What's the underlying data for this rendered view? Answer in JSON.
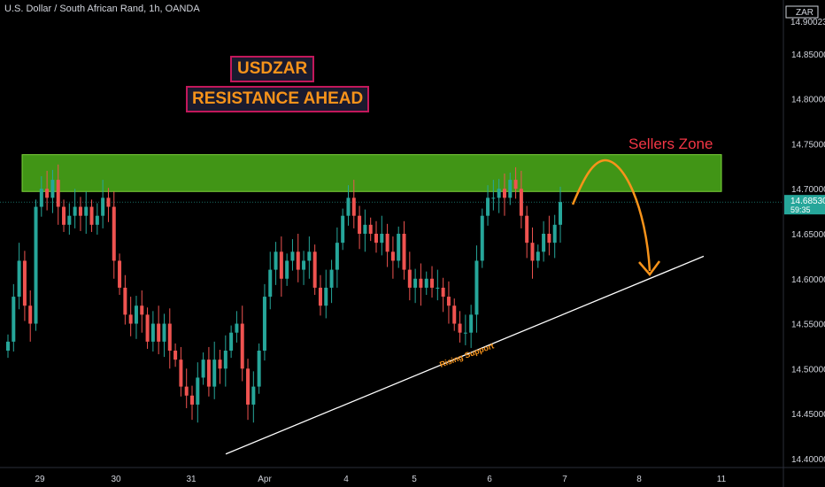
{
  "header": {
    "symbol_title": "U.S. Dollar / South African Rand, 1h, OANDA",
    "currency": "ZAR",
    "top_price": "14.90023"
  },
  "annotations": {
    "pair": "USDZAR",
    "headline": "RESISTANCE AHEAD",
    "zone_label": "Sellers Zone",
    "support_label": "Rising Support"
  },
  "price_box": {
    "price": "14.68530",
    "countdown": "59:35"
  },
  "colors": {
    "up": "#26a69a",
    "down": "#ef5350",
    "zone_fill": "#4caf1a",
    "zone_label": "#f23645",
    "arrow": "#f7931a",
    "support_line": "#ffffff",
    "price_box": "#26a69a",
    "badge_border": "#c2185b",
    "badge_text": "#f7931a"
  },
  "chart_data": {
    "type": "candlestick",
    "ylim": [
      14.39,
      14.91
    ],
    "y_ticks": [
      "14.85000",
      "14.80000",
      "14.75000",
      "14.70000",
      "14.65000",
      "14.60000",
      "14.55000",
      "14.50000",
      "14.45000",
      "14.40000"
    ],
    "x_ticks": [
      "29",
      "30",
      "31",
      "Apr",
      "4",
      "5",
      "6",
      "7",
      "8",
      "11"
    ],
    "current_price": 14.6853,
    "sellers_zone": {
      "low": 14.697,
      "high": 14.738
    },
    "rising_support": {
      "from": {
        "date": "Apr 1",
        "price": 14.405
      },
      "to": {
        "date": "Apr 8",
        "price": 14.625
      }
    },
    "closes": [
      14.53,
      14.58,
      14.62,
      14.57,
      14.55,
      14.68,
      14.7,
      14.69,
      14.71,
      14.68,
      14.66,
      14.67,
      14.68,
      14.67,
      14.68,
      14.66,
      14.67,
      14.69,
      14.68,
      14.62,
      14.59,
      14.56,
      14.55,
      14.57,
      14.56,
      14.53,
      14.55,
      14.53,
      14.55,
      14.52,
      14.51,
      14.48,
      14.47,
      14.46,
      14.49,
      14.51,
      14.48,
      14.51,
      14.5,
      14.52,
      14.54,
      14.55,
      14.5,
      14.46,
      14.48,
      14.52,
      14.58,
      14.61,
      14.63,
      14.6,
      14.62,
      14.63,
      14.61,
      14.62,
      14.63,
      14.59,
      14.57,
      14.59,
      14.61,
      14.64,
      14.67,
      14.69,
      14.67,
      14.65,
      14.66,
      14.65,
      14.64,
      14.65,
      14.63,
      14.62,
      14.65,
      14.61,
      14.59,
      14.6,
      14.59,
      14.6,
      14.59,
      14.59,
      14.58,
      14.57,
      14.55,
      14.54,
      14.54,
      14.56,
      14.62,
      14.67,
      14.69,
      14.69,
      14.7,
      14.69,
      14.71,
      14.7,
      14.67,
      14.64,
      14.62,
      14.63,
      14.65,
      14.64,
      14.66,
      14.6853
    ]
  }
}
